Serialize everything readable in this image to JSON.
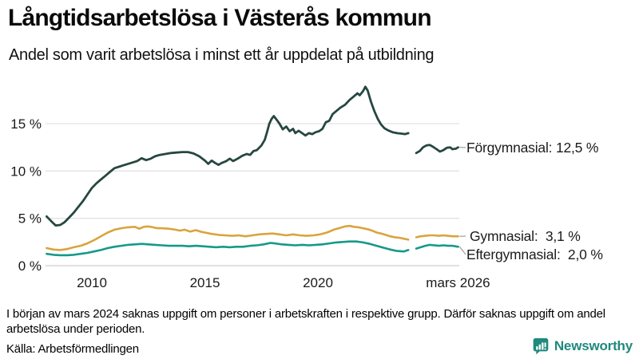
{
  "header": {
    "title": "Långtidsarbetslösa i Västerås kommun",
    "subtitle": "Andel som varit arbetslösa i minst ett år uppdelat på utbildning"
  },
  "chart_data": {
    "type": "line",
    "title": "Långtidsarbetslösa i Västerås kommun",
    "subtitle": "Andel som varit arbetslösa i minst ett år uppdelat på utbildning",
    "x_unit": "decimal_year",
    "xlim": [
      2007.95,
      2026.25
    ],
    "ylim": [
      0,
      19.5
    ],
    "grid": "horizontal",
    "legend_position": "right-end-labels",
    "y_gridlines": [
      0,
      5,
      10,
      15
    ],
    "y_tick_labels": [
      "0 %",
      "5 %",
      "10 %",
      "15 %"
    ],
    "x_ticks": [
      {
        "x": 2010,
        "label": "2010"
      },
      {
        "x": 2015,
        "label": "2015"
      },
      {
        "x": 2020,
        "label": "2020"
      },
      {
        "x": 2026.2,
        "label": "mars 2026"
      }
    ],
    "data_gap": {
      "from": 2024.05,
      "to": 2024.3,
      "reason": "uppgift saknas från början av mars 2024"
    },
    "series": [
      {
        "name": "Förgymnasial",
        "color": "#264741",
        "end_label": "Förgymnasial: 12,5 %",
        "end_value": "12,5 %",
        "segments": [
          [
            [
              2008.0,
              5.2
            ],
            [
              2008.2,
              4.7
            ],
            [
              2008.4,
              4.25
            ],
            [
              2008.6,
              4.3
            ],
            [
              2008.8,
              4.6
            ],
            [
              2009.0,
              5.1
            ],
            [
              2009.2,
              5.6
            ],
            [
              2009.4,
              6.2
            ],
            [
              2009.6,
              6.8
            ],
            [
              2009.8,
              7.5
            ],
            [
              2010.0,
              8.2
            ],
            [
              2010.2,
              8.7
            ],
            [
              2010.4,
              9.1
            ],
            [
              2010.6,
              9.5
            ],
            [
              2010.8,
              9.9
            ],
            [
              2011.0,
              10.3
            ],
            [
              2011.2,
              10.45
            ],
            [
              2011.4,
              10.6
            ],
            [
              2011.6,
              10.75
            ],
            [
              2011.8,
              10.9
            ],
            [
              2012.0,
              11.05
            ],
            [
              2012.2,
              11.35
            ],
            [
              2012.4,
              11.15
            ],
            [
              2012.6,
              11.3
            ],
            [
              2012.8,
              11.55
            ],
            [
              2013.0,
              11.7
            ],
            [
              2013.25,
              11.8
            ],
            [
              2013.5,
              11.9
            ],
            [
              2013.75,
              11.95
            ],
            [
              2014.0,
              12.0
            ],
            [
              2014.25,
              12.0
            ],
            [
              2014.5,
              11.85
            ],
            [
              2014.75,
              11.55
            ],
            [
              2015.0,
              11.1
            ],
            [
              2015.15,
              10.75
            ],
            [
              2015.3,
              11.1
            ],
            [
              2015.45,
              10.85
            ],
            [
              2015.6,
              10.65
            ],
            [
              2015.75,
              10.85
            ],
            [
              2015.95,
              11.05
            ],
            [
              2016.1,
              11.3
            ],
            [
              2016.25,
              11.05
            ],
            [
              2016.45,
              11.3
            ],
            [
              2016.65,
              11.6
            ],
            [
              2016.85,
              11.8
            ],
            [
              2017.0,
              11.7
            ],
            [
              2017.15,
              12.1
            ],
            [
              2017.3,
              12.2
            ],
            [
              2017.5,
              12.7
            ],
            [
              2017.65,
              13.3
            ],
            [
              2017.75,
              14.1
            ],
            [
              2017.85,
              15.0
            ],
            [
              2017.95,
              15.5
            ],
            [
              2018.05,
              15.8
            ],
            [
              2018.15,
              15.5
            ],
            [
              2018.3,
              15.0
            ],
            [
              2018.45,
              14.4
            ],
            [
              2018.6,
              14.7
            ],
            [
              2018.75,
              14.2
            ],
            [
              2018.9,
              14.45
            ],
            [
              2019.0,
              14.0
            ],
            [
              2019.15,
              14.25
            ],
            [
              2019.3,
              14.0
            ],
            [
              2019.45,
              13.75
            ],
            [
              2019.6,
              14.0
            ],
            [
              2019.75,
              13.9
            ],
            [
              2019.9,
              14.1
            ],
            [
              2020.05,
              14.2
            ],
            [
              2020.2,
              14.45
            ],
            [
              2020.35,
              15.15
            ],
            [
              2020.5,
              15.3
            ],
            [
              2020.65,
              16.0
            ],
            [
              2020.8,
              16.3
            ],
            [
              2021.0,
              16.7
            ],
            [
              2021.2,
              17.0
            ],
            [
              2021.4,
              17.5
            ],
            [
              2021.6,
              17.9
            ],
            [
              2021.75,
              18.2
            ],
            [
              2021.85,
              18.0
            ],
            [
              2022.0,
              18.45
            ],
            [
              2022.1,
              18.9
            ],
            [
              2022.2,
              18.5
            ],
            [
              2022.35,
              17.3
            ],
            [
              2022.5,
              16.3
            ],
            [
              2022.65,
              15.5
            ],
            [
              2022.8,
              14.9
            ],
            [
              2022.95,
              14.5
            ],
            [
              2023.1,
              14.3
            ],
            [
              2023.3,
              14.1
            ],
            [
              2023.5,
              14.0
            ],
            [
              2023.7,
              13.95
            ],
            [
              2023.85,
              13.9
            ],
            [
              2024.0,
              14.0
            ]
          ],
          [
            [
              2024.35,
              11.9
            ],
            [
              2024.5,
              12.1
            ],
            [
              2024.65,
              12.5
            ],
            [
              2024.8,
              12.7
            ],
            [
              2024.95,
              12.75
            ],
            [
              2025.1,
              12.55
            ],
            [
              2025.25,
              12.3
            ],
            [
              2025.4,
              12.05
            ],
            [
              2025.55,
              12.2
            ],
            [
              2025.7,
              12.45
            ],
            [
              2025.85,
              12.5
            ],
            [
              2025.95,
              12.3
            ],
            [
              2026.1,
              12.35
            ],
            [
              2026.2,
              12.5
            ]
          ]
        ]
      },
      {
        "name": "Gymnasial",
        "color": "#d9a43e",
        "end_label": "Gymnasial:  3,1 %",
        "end_value": "3,1 %",
        "segments": [
          [
            [
              2008.0,
              1.85
            ],
            [
              2008.3,
              1.7
            ],
            [
              2008.6,
              1.65
            ],
            [
              2008.9,
              1.75
            ],
            [
              2009.2,
              1.95
            ],
            [
              2009.5,
              2.1
            ],
            [
              2009.8,
              2.35
            ],
            [
              2010.1,
              2.7
            ],
            [
              2010.4,
              3.1
            ],
            [
              2010.7,
              3.5
            ],
            [
              2011.0,
              3.8
            ],
            [
              2011.3,
              3.95
            ],
            [
              2011.6,
              4.05
            ],
            [
              2011.9,
              4.1
            ],
            [
              2012.1,
              3.9
            ],
            [
              2012.3,
              4.1
            ],
            [
              2012.5,
              4.15
            ],
            [
              2012.7,
              4.05
            ],
            [
              2012.9,
              3.95
            ],
            [
              2013.1,
              3.95
            ],
            [
              2013.4,
              3.9
            ],
            [
              2013.7,
              3.8
            ],
            [
              2013.9,
              3.7
            ],
            [
              2014.1,
              3.8
            ],
            [
              2014.35,
              3.6
            ],
            [
              2014.6,
              3.75
            ],
            [
              2014.8,
              3.6
            ],
            [
              2015.0,
              3.5
            ],
            [
              2015.3,
              3.35
            ],
            [
              2015.6,
              3.25
            ],
            [
              2015.9,
              3.2
            ],
            [
              2016.2,
              3.15
            ],
            [
              2016.5,
              3.2
            ],
            [
              2016.8,
              3.1
            ],
            [
              2017.1,
              3.2
            ],
            [
              2017.4,
              3.3
            ],
            [
              2017.7,
              3.35
            ],
            [
              2018.0,
              3.4
            ],
            [
              2018.3,
              3.3
            ],
            [
              2018.6,
              3.2
            ],
            [
              2018.9,
              3.3
            ],
            [
              2019.2,
              3.2
            ],
            [
              2019.5,
              3.15
            ],
            [
              2019.8,
              3.2
            ],
            [
              2020.1,
              3.3
            ],
            [
              2020.4,
              3.5
            ],
            [
              2020.7,
              3.8
            ],
            [
              2021.0,
              4.0
            ],
            [
              2021.2,
              4.15
            ],
            [
              2021.4,
              4.2
            ],
            [
              2021.6,
              4.1
            ],
            [
              2021.8,
              4.05
            ],
            [
              2022.0,
              3.95
            ],
            [
              2022.2,
              3.85
            ],
            [
              2022.4,
              3.7
            ],
            [
              2022.6,
              3.5
            ],
            [
              2022.8,
              3.4
            ],
            [
              2023.0,
              3.25
            ],
            [
              2023.2,
              3.1
            ],
            [
              2023.4,
              3.0
            ],
            [
              2023.6,
              2.95
            ],
            [
              2023.8,
              2.85
            ],
            [
              2024.0,
              2.75
            ]
          ],
          [
            [
              2024.35,
              3.0
            ],
            [
              2024.55,
              3.1
            ],
            [
              2024.75,
              3.15
            ],
            [
              2024.95,
              3.2
            ],
            [
              2025.15,
              3.2
            ],
            [
              2025.35,
              3.15
            ],
            [
              2025.55,
              3.2
            ],
            [
              2025.75,
              3.15
            ],
            [
              2025.95,
              3.1
            ],
            [
              2026.2,
              3.1
            ]
          ]
        ]
      },
      {
        "name": "Eftergymnasial",
        "color": "#15998a",
        "end_label": "Eftergymnasial:  2,0 %",
        "end_value": "2,0 %",
        "segments": [
          [
            [
              2008.0,
              1.25
            ],
            [
              2008.3,
              1.15
            ],
            [
              2008.6,
              1.1
            ],
            [
              2008.9,
              1.1
            ],
            [
              2009.2,
              1.15
            ],
            [
              2009.5,
              1.25
            ],
            [
              2009.8,
              1.35
            ],
            [
              2010.1,
              1.5
            ],
            [
              2010.4,
              1.65
            ],
            [
              2010.7,
              1.85
            ],
            [
              2011.0,
              2.0
            ],
            [
              2011.3,
              2.1
            ],
            [
              2011.6,
              2.2
            ],
            [
              2011.9,
              2.25
            ],
            [
              2012.2,
              2.3
            ],
            [
              2012.5,
              2.25
            ],
            [
              2012.8,
              2.2
            ],
            [
              2013.1,
              2.15
            ],
            [
              2013.4,
              2.1
            ],
            [
              2013.7,
              2.1
            ],
            [
              2014.0,
              2.1
            ],
            [
              2014.3,
              2.05
            ],
            [
              2014.6,
              2.1
            ],
            [
              2014.9,
              2.05
            ],
            [
              2015.2,
              2.0
            ],
            [
              2015.5,
              1.95
            ],
            [
              2015.8,
              2.0
            ],
            [
              2016.1,
              1.95
            ],
            [
              2016.4,
              2.0
            ],
            [
              2016.7,
              2.0
            ],
            [
              2017.0,
              2.1
            ],
            [
              2017.3,
              2.15
            ],
            [
              2017.6,
              2.25
            ],
            [
              2017.9,
              2.4
            ],
            [
              2018.1,
              2.35
            ],
            [
              2018.4,
              2.25
            ],
            [
              2018.7,
              2.2
            ],
            [
              2019.0,
              2.15
            ],
            [
              2019.3,
              2.2
            ],
            [
              2019.6,
              2.15
            ],
            [
              2019.9,
              2.2
            ],
            [
              2020.2,
              2.25
            ],
            [
              2020.5,
              2.35
            ],
            [
              2020.8,
              2.45
            ],
            [
              2021.1,
              2.5
            ],
            [
              2021.4,
              2.55
            ],
            [
              2021.7,
              2.55
            ],
            [
              2022.0,
              2.45
            ],
            [
              2022.3,
              2.3
            ],
            [
              2022.6,
              2.1
            ],
            [
              2022.9,
              1.9
            ],
            [
              2023.2,
              1.7
            ],
            [
              2023.5,
              1.55
            ],
            [
              2023.8,
              1.5
            ],
            [
              2024.0,
              1.65
            ]
          ],
          [
            [
              2024.35,
              1.8
            ],
            [
              2024.55,
              1.95
            ],
            [
              2024.75,
              2.1
            ],
            [
              2024.95,
              2.2
            ],
            [
              2025.15,
              2.15
            ],
            [
              2025.35,
              2.1
            ],
            [
              2025.55,
              2.15
            ],
            [
              2025.75,
              2.1
            ],
            [
              2025.95,
              2.1
            ],
            [
              2026.2,
              2.0
            ]
          ]
        ]
      }
    ],
    "colors": {
      "gridline": "#e2e2e2",
      "baseline": "#cfcfcf",
      "tick_text": "#1a1a1a",
      "connector": "#8a8a8a"
    }
  },
  "annotations": [
    {
      "label": "Förgymnasial: 12,5 %"
    },
    {
      "label": "Gymnasial:  3,1 %"
    },
    {
      "label": "Eftergymnasial:  2,0 %"
    }
  ],
  "footnote": "I början av mars 2024 saknas uppgift om personer i arbetskraften i respektive grupp. Därför saknas uppgift om andel arbetslösa under perioden.",
  "source": "Källa: Arbetsförmedlingen",
  "logo": {
    "text": "Newsworthy",
    "color": "#20897e"
  }
}
